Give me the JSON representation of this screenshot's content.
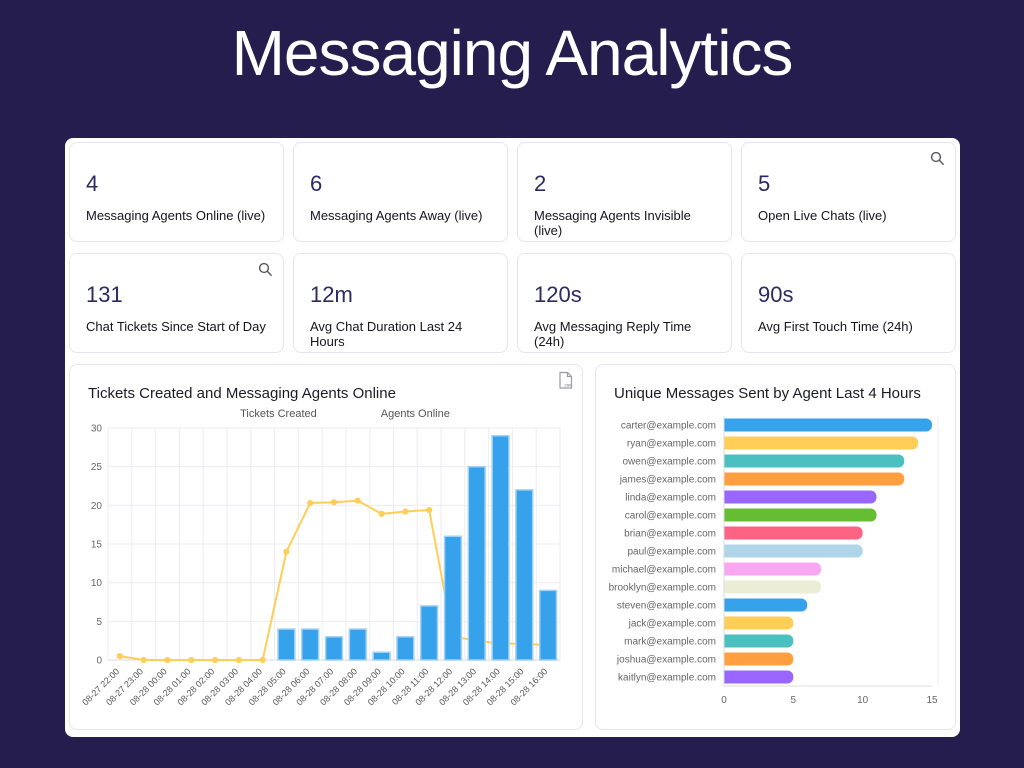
{
  "title": "Messaging Analytics",
  "icons": {
    "csv_label": "csv"
  },
  "stats": {
    "row1": [
      {
        "value": "4",
        "label": "Messaging Agents Online (live)",
        "icon": ""
      },
      {
        "value": "6",
        "label": "Messaging Agents Away (live)",
        "icon": ""
      },
      {
        "value": "2",
        "label": "Messaging Agents Invisible (live)",
        "icon": ""
      },
      {
        "value": "5",
        "label": "Open Live Chats (live)",
        "icon": "search"
      }
    ],
    "row2": [
      {
        "value": "131",
        "label": "Chat Tickets Since Start of Day",
        "icon": "search"
      },
      {
        "value": "12m",
        "label": "Avg Chat Duration Last 24 Hours",
        "icon": ""
      },
      {
        "value": "120s",
        "label": "Avg Messaging Reply Time (24h)",
        "icon": ""
      },
      {
        "value": "90s",
        "label": "Avg First Touch Time (24h)",
        "icon": ""
      }
    ]
  },
  "chart_data": [
    {
      "type": "bar",
      "title": "Tickets Created and Messaging Agents Online",
      "legend_position": "top",
      "categories": [
        "08-27 22:00",
        "08-27 23:00",
        "08-28 00:00",
        "08-28 01:00",
        "08-28 02:00",
        "08-28 03:00",
        "08-28 04:00",
        "08-28 05:00",
        "08-28 06:00",
        "08-28 07:00",
        "08-28 08:00",
        "08-28 09:00",
        "08-28 10:00",
        "08-28 11:00",
        "08-28 12:00",
        "08-28 13:00",
        "08-28 14:00",
        "08-28 15:00",
        "08-28 16:00"
      ],
      "series": [
        {
          "name": "Tickets Created",
          "type": "bar",
          "color": "#36a2eb",
          "border_color": "#a2d1f5",
          "values": [
            0,
            0,
            0,
            0,
            0,
            0,
            0,
            4,
            4,
            3,
            4,
            1,
            3,
            7,
            16,
            25,
            29,
            22,
            9
          ]
        },
        {
          "name": "Agents Online",
          "type": "line",
          "color": "#ffce56",
          "values": [
            0.5,
            0,
            0,
            0,
            0,
            0,
            0,
            14,
            20.3,
            20.4,
            20.6,
            18.9,
            19.2,
            19.4,
            3,
            2.5,
            2.1,
            2.1,
            1.9
          ]
        }
      ],
      "ylim": [
        0,
        30
      ],
      "yticks": [
        0,
        5,
        10,
        15,
        20,
        25,
        30
      ],
      "grid": true
    },
    {
      "type": "bar",
      "orientation": "horizontal",
      "title": "Unique Messages Sent by Agent Last 4 Hours",
      "categories": [
        "carter@example.com",
        "ryan@example.com",
        "owen@example.com",
        "james@example.com",
        "linda@example.com",
        "carol@example.com",
        "brian@example.com",
        "paul@example.com",
        "michael@example.com",
        "brooklyn@example.com",
        "steven@example.com",
        "jack@example.com",
        "mark@example.com",
        "joshua@example.com",
        "kaitlyn@example.com"
      ],
      "values": [
        15,
        14,
        13,
        13,
        11,
        11,
        10,
        10,
        7,
        7,
        6,
        5,
        5,
        5,
        5
      ],
      "colors": [
        "#36a2eb",
        "#ffce56",
        "#4bc0c0",
        "#ff9f40",
        "#9966ff",
        "#65bd34",
        "#ff6384",
        "#aed6e8",
        "#fba6f1",
        "#ecedd5",
        "#36a2eb",
        "#ffce56",
        "#4bc0c0",
        "#ff9f40",
        "#9966ff"
      ],
      "xlim": [
        0,
        15
      ],
      "xticks": [
        0,
        5,
        10,
        15
      ],
      "grid": false
    }
  ]
}
